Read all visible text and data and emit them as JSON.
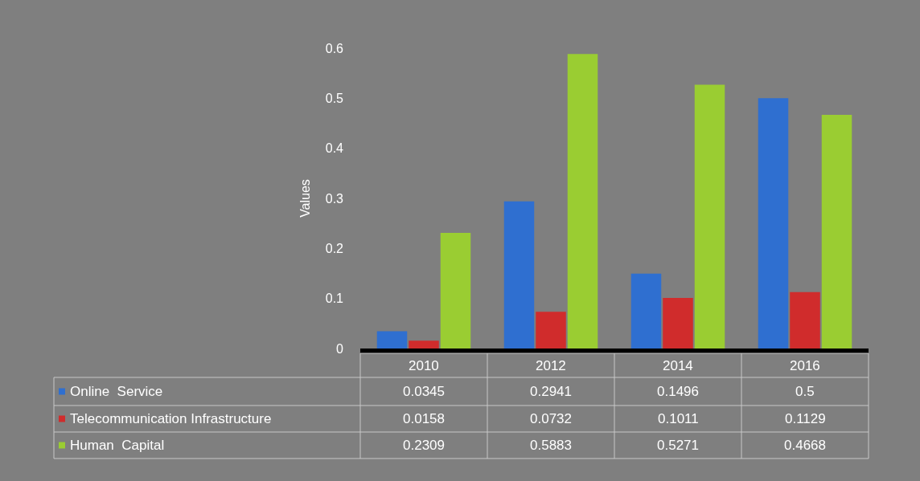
{
  "chart_data": {
    "type": "bar",
    "ylabel": "Values",
    "categories": [
      "2010",
      "2012",
      "2014",
      "2016"
    ],
    "series": [
      {
        "name": "Online  Service",
        "color": "#2f6fd0",
        "values": [
          0.0345,
          0.2941,
          0.1496,
          0.5
        ]
      },
      {
        "name": "Telecommunication Infrastructure",
        "color": "#d02c2c",
        "values": [
          0.0158,
          0.0732,
          0.1011,
          0.1129
        ]
      },
      {
        "name": "Human  Capital",
        "color": "#9acd32",
        "values": [
          0.2309,
          0.5883,
          0.5271,
          0.4668
        ]
      }
    ],
    "ylim": [
      0,
      0.6
    ],
    "yticks": [
      0,
      0.1,
      0.2,
      0.3,
      0.4,
      0.5,
      0.6
    ],
    "legend": "bottom",
    "data_labels": true
  }
}
